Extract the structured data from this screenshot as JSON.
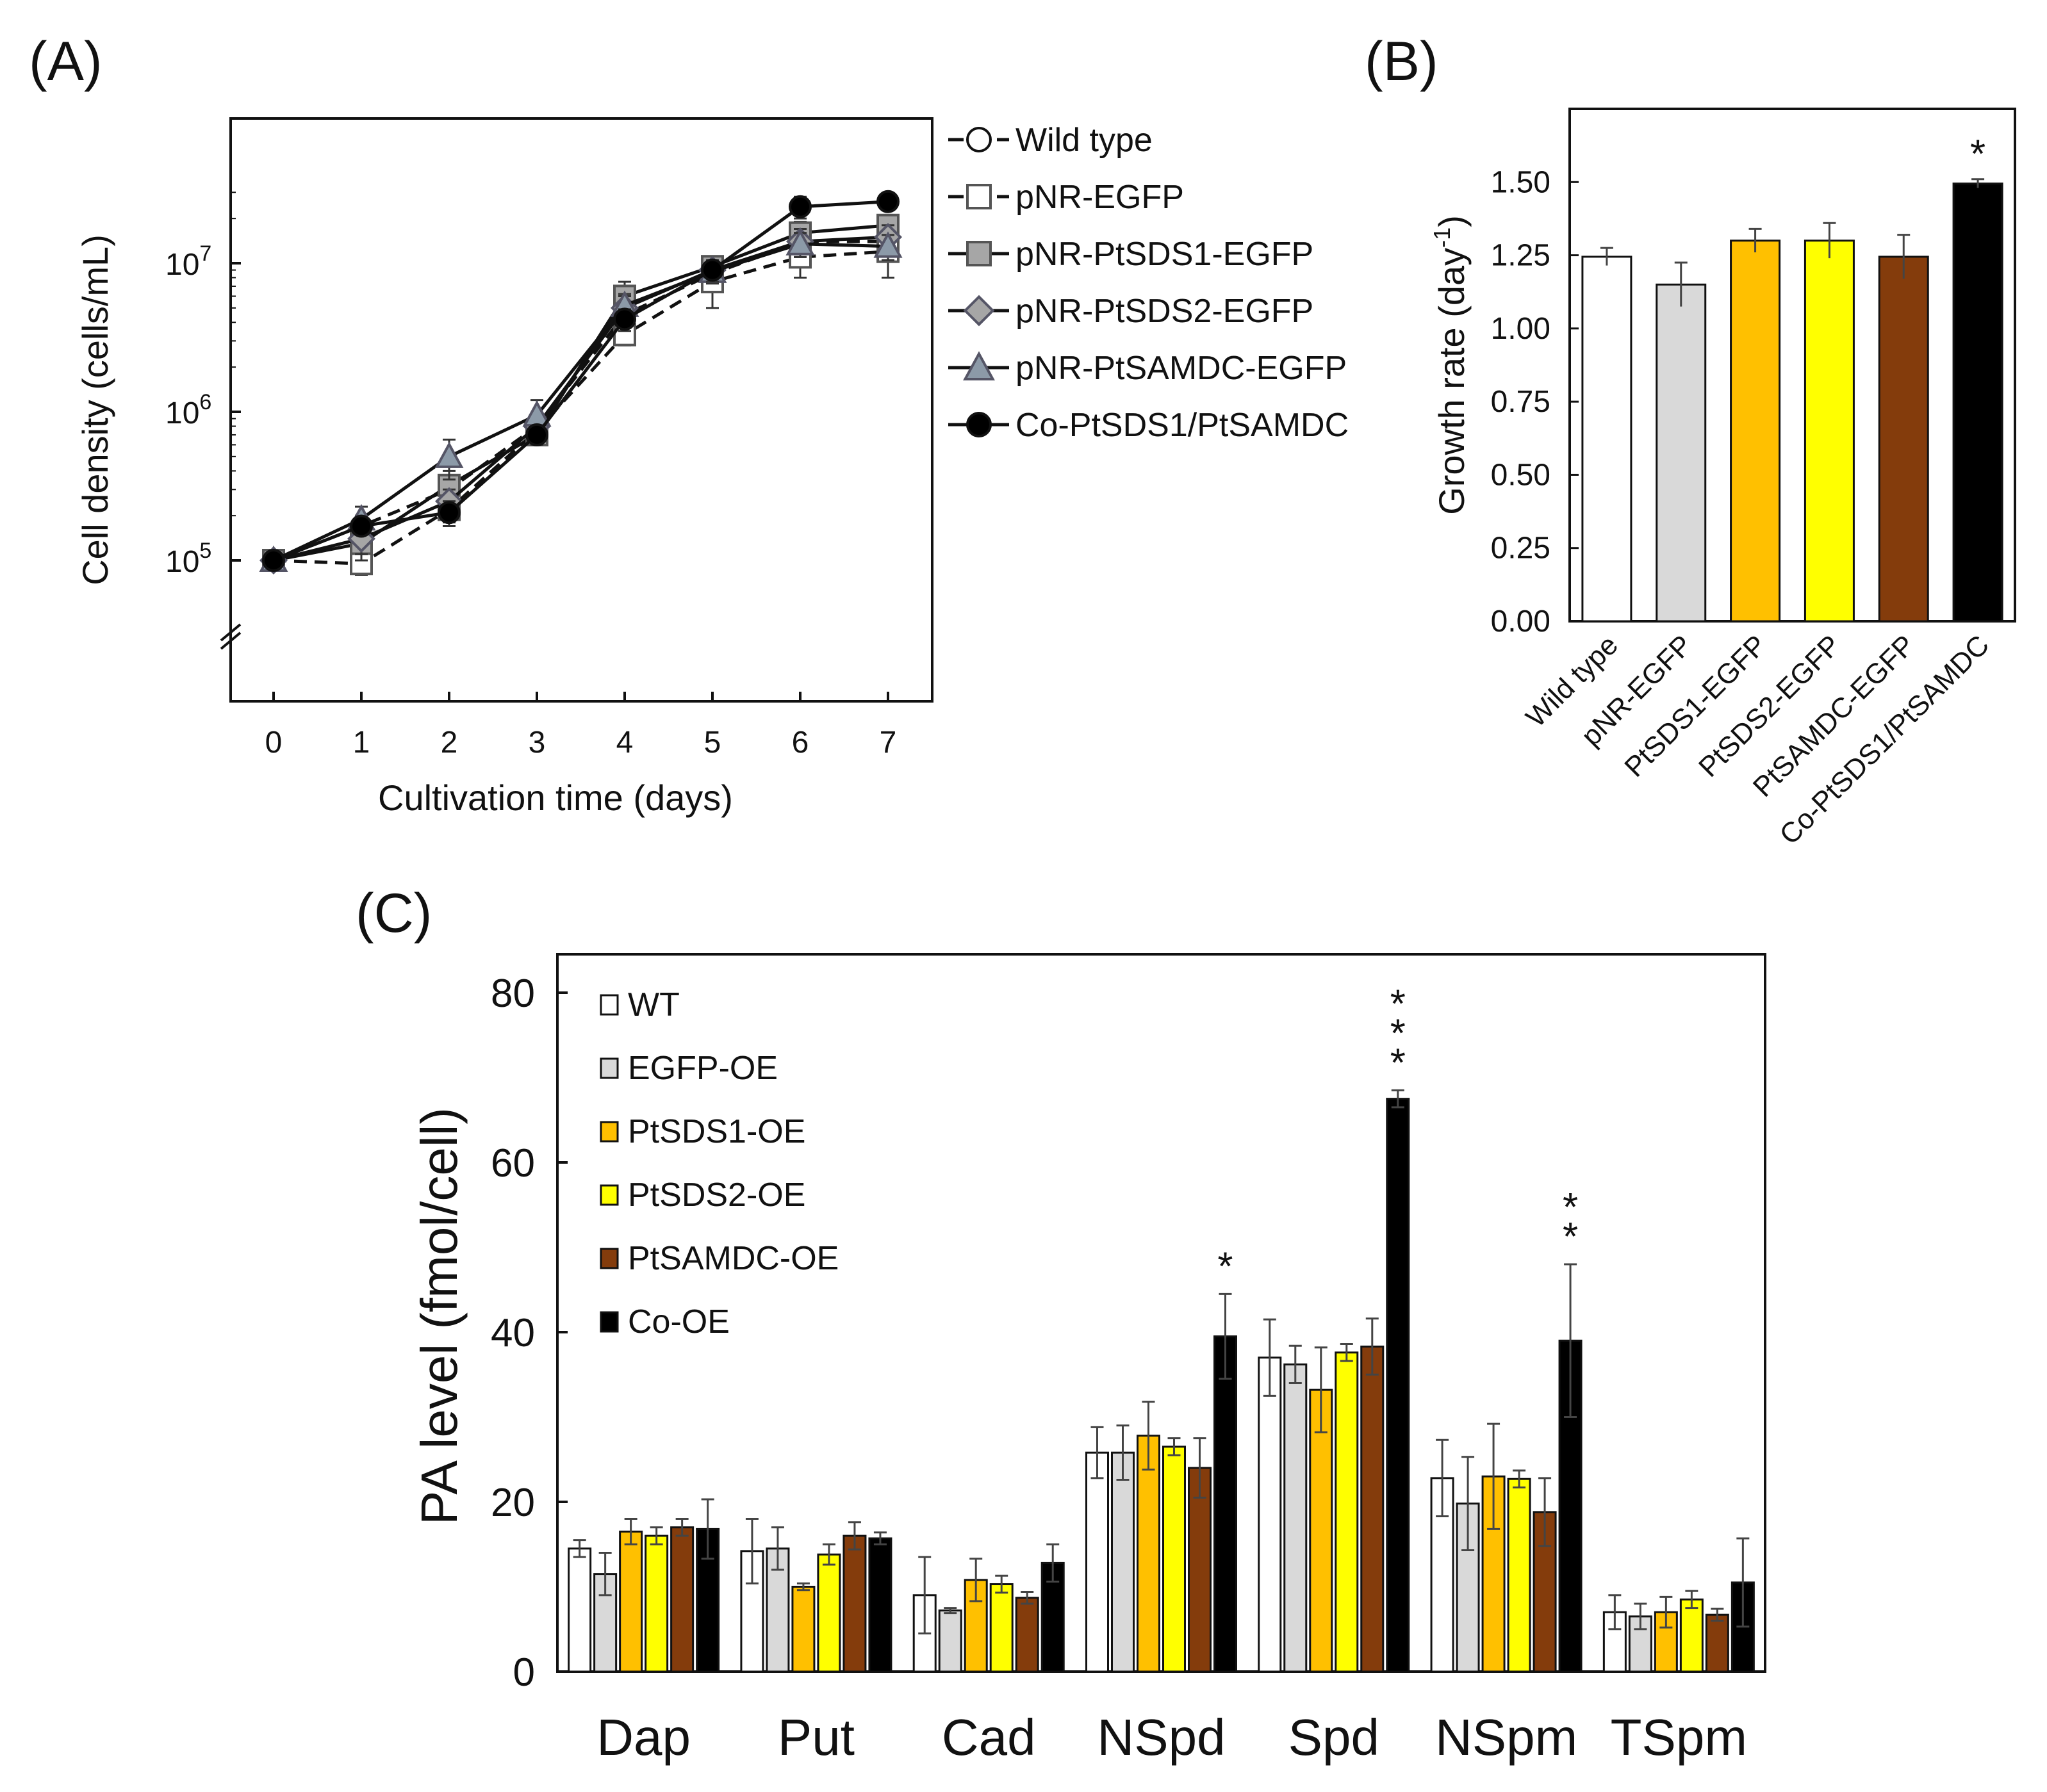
{
  "chart_data": [
    {
      "panel": "(A)",
      "type": "line",
      "ylog": true,
      "xlabel": "Cultivation time (days)",
      "ylabel": "Cell density (cells/mL)",
      "x": [
        0,
        1,
        2,
        3,
        4,
        5,
        6,
        7
      ],
      "xticks": [
        "0",
        "1",
        "2",
        "3",
        "4",
        "5",
        "6",
        "7"
      ],
      "yticks": [
        {
          "value": 100000,
          "base": "10",
          "exp": "5"
        },
        {
          "value": 1000000,
          "base": "10",
          "exp": "6"
        },
        {
          "value": 10000000,
          "base": "10",
          "exp": "7"
        }
      ],
      "series": [
        {
          "name": "Wild type",
          "marker": "circle",
          "fill": "#ffffff",
          "dashed": true,
          "values": [
            100000,
            170000,
            300000,
            800000,
            4500000,
            8500000,
            14000000,
            14000000
          ],
          "errors": [
            10000,
            30000,
            50000,
            100000,
            800000,
            2000000,
            2000000,
            3000000
          ]
        },
        {
          "name": "pNR-EGFP",
          "marker": "square",
          "fill": "#ffffff",
          "dashed": true,
          "values": [
            100000,
            95000,
            220000,
            750000,
            3300000,
            7500000,
            11000000,
            12000000
          ],
          "errors": [
            5000,
            15000,
            40000,
            100000,
            500000,
            2500000,
            3000000,
            4000000
          ]
        },
        {
          "name": "pNR-PtSDS1-EGFP",
          "marker": "square",
          "fill": "#a6a6a6",
          "dashed": false,
          "values": [
            100000,
            130000,
            320000,
            700000,
            6000000,
            9500000,
            16000000,
            18000000
          ],
          "errors": [
            5000,
            30000,
            80000,
            100000,
            1500000,
            1500000,
            3000000,
            3000000
          ]
        },
        {
          "name": "pNR-PtSDS2-EGFP",
          "marker": "diamond",
          "fill": "#a6a6a6",
          "dashed": false,
          "values": [
            100000,
            140000,
            250000,
            800000,
            5000000,
            9000000,
            14000000,
            15000000
          ],
          "errors": [
            5000,
            30000,
            50000,
            100000,
            1000000,
            1500000,
            3000000,
            3000000
          ]
        },
        {
          "name": "pNR-PtSAMDC-EGFP",
          "marker": "triangle",
          "fill": "#8c9aa8",
          "dashed": false,
          "values": [
            100000,
            190000,
            500000,
            950000,
            5200000,
            8800000,
            13500000,
            13000000
          ],
          "errors": [
            5000,
            40000,
            150000,
            250000,
            1000000,
            1500000,
            2500000,
            2500000
          ]
        },
        {
          "name": "Co-PtSDS1/PtSAMDC",
          "marker": "circle",
          "fill": "#000000",
          "dashed": false,
          "values": [
            100000,
            170000,
            210000,
            700000,
            4200000,
            9000000,
            24000000,
            26000000
          ],
          "errors": [
            5000,
            20000,
            40000,
            100000,
            700000,
            1500000,
            4000000,
            2000000
          ]
        }
      ]
    },
    {
      "panel": "(B)",
      "type": "bar",
      "ylabel": "Growth rate (day",
      "ylabel_sup": "-1",
      "ylabel_close": ")",
      "ylim": [
        0,
        1.75
      ],
      "yticks": [
        "0.00",
        "0.25",
        "0.50",
        "0.75",
        "1.00",
        "1.25",
        "1.50"
      ],
      "categories": [
        "Wild type",
        "pNR-EGFP",
        "PtSDS1-EGFP",
        "PtSDS2-EGFP",
        "PtSAMDC-EGFP",
        "Co-PtSDS1/PtSAMDC"
      ],
      "values": [
        1.245,
        1.15,
        1.3,
        1.3,
        1.245,
        1.495
      ],
      "errors": [
        0.03,
        0.075,
        0.04,
        0.06,
        0.075,
        0.015
      ],
      "colors": [
        "#ffffff",
        "#d9d9d9",
        "#ffc000",
        "#ffff00",
        "#843c0c",
        "#000000"
      ],
      "annotations": [
        "",
        "",
        "",
        "",
        "",
        "*"
      ]
    },
    {
      "panel": "(C)",
      "type": "bar",
      "ylabel": "PA level (fmol/cell)",
      "ylim": [
        0,
        80
      ],
      "yticks": [
        "0",
        "20",
        "40",
        "60",
        "80"
      ],
      "categories": [
        "Dap",
        "Put",
        "Cad",
        "NSpd",
        "Spd",
        "NSpm",
        "TSpm"
      ],
      "series": [
        {
          "name": "WT",
          "color": "#ffffff",
          "values": [
            14.5,
            14.2,
            9.0,
            25.8,
            37.0,
            22.8,
            7.0
          ],
          "errors": [
            1.0,
            3.8,
            4.5,
            3.0,
            4.5,
            4.5,
            2.0
          ]
        },
        {
          "name": "EGFP-OE",
          "color": "#d9d9d9",
          "values": [
            11.5,
            14.5,
            7.2,
            25.8,
            36.2,
            19.8,
            6.5
          ],
          "errors": [
            2.5,
            2.5,
            0.3,
            3.2,
            2.2,
            5.5,
            1.5
          ]
        },
        {
          "name": "PtSDS1-OE",
          "color": "#ffc000",
          "values": [
            16.5,
            10.0,
            10.8,
            27.8,
            33.2,
            23.0,
            7.0
          ],
          "errors": [
            1.5,
            0.4,
            2.5,
            4.0,
            5.0,
            6.2,
            1.8
          ]
        },
        {
          "name": "PtSDS2-OE",
          "color": "#ffff00",
          "values": [
            16.0,
            13.8,
            10.3,
            26.5,
            37.6,
            22.7,
            8.5
          ],
          "errors": [
            1.0,
            1.2,
            1.0,
            1.0,
            1.0,
            1.0,
            1.0
          ]
        },
        {
          "name": "PtSAMDC-OE",
          "color": "#843c0c",
          "values": [
            17.0,
            16.0,
            8.7,
            24.0,
            38.3,
            18.8,
            6.7
          ],
          "errors": [
            1.0,
            1.6,
            0.7,
            3.5,
            3.3,
            4.0,
            0.7
          ]
        },
        {
          "name": "Co-OE",
          "color": "#000000",
          "values": [
            16.8,
            15.7,
            12.8,
            39.5,
            67.5,
            39.0,
            10.5
          ],
          "errors": [
            3.5,
            0.7,
            2.2,
            5.0,
            1.0,
            9.0,
            5.2
          ]
        }
      ],
      "annotations": [
        {
          "category": "NSpd",
          "series": "Co-OE",
          "stars": [
            "*"
          ]
        },
        {
          "category": "Spd",
          "series": "Co-OE",
          "stars": [
            "*",
            "*",
            "*"
          ]
        },
        {
          "category": "NSpm",
          "series": "Co-OE",
          "stars": [
            "*",
            "*"
          ]
        }
      ]
    }
  ]
}
